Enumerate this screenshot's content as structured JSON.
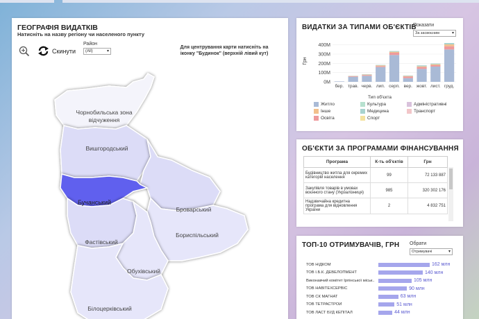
{
  "map": {
    "title": "ГЕОГРАФІЯ ВИДАТКІВ",
    "subtitle": "Натисніть на назву регіону чи населеного пункту",
    "reset_label": "Скинути",
    "rayon_label": "Район",
    "rayon_value": "(All)",
    "center_hint": "Для центрування карти натисніть на іконку \"Будинок\" (верхній лівий кут)",
    "regions": [
      {
        "label_line1": "Чорнобильська зона",
        "label_line2": "відчуження"
      },
      {
        "label_line1": "Вишгородський",
        "label_line2": ""
      },
      {
        "label_line1": "Бучанський",
        "label_line2": ""
      },
      {
        "label_line1": "Броварський",
        "label_line2": ""
      },
      {
        "label_line1": "Бориспільський",
        "label_line2": ""
      },
      {
        "label_line1": "Фастівський",
        "label_line2": ""
      },
      {
        "label_line1": "Обухівський",
        "label_line2": ""
      },
      {
        "label_line1": "Білоцерківський",
        "label_line2": ""
      }
    ],
    "colors": {
      "selected": "#6161ee",
      "default": "#dcdcf7",
      "light": "#e6e6fa",
      "outline": "#ffffff"
    }
  },
  "expenses": {
    "title": "ВИДАТКИ ЗА ТИПАМИ ОБ'ЄКТІВ",
    "show_label": "Показати",
    "show_value": "За засвоєним",
    "legend_title": "Тип об'єкта",
    "legend": [
      {
        "label": "Житло",
        "color": "#a9bad6"
      },
      {
        "label": "Культура",
        "color": "#b7e1cf"
      },
      {
        "label": "Адміністративні",
        "color": "#d9c2dc"
      },
      {
        "label": "Інше",
        "color": "#f2c08c"
      },
      {
        "label": "Медицина",
        "color": "#a8d3cf"
      },
      {
        "label": "Транспорт",
        "color": "#f2c6c9"
      },
      {
        "label": "Освіта",
        "color": "#ee9a9c"
      },
      {
        "label": "Спорт",
        "color": "#f4e2a0"
      }
    ]
  },
  "chart_data": {
    "type": "bar",
    "title": "ВИДАТКИ ЗА ТИПАМИ ОБ'ЄКТІВ",
    "xlabel": "",
    "ylabel": "Грн",
    "ylim": [
      0,
      450
    ],
    "yticks": [
      "0M",
      "100M",
      "200M",
      "300M",
      "400M"
    ],
    "categories": [
      "бер.",
      "трав.",
      "черв.",
      "лип.",
      "серп.",
      "вер.",
      "жовт.",
      "лист.",
      "груд."
    ],
    "series": [
      {
        "name": "Житло",
        "values": [
          5,
          55,
          65,
          160,
          290,
          40,
          140,
          165,
          350
        ]
      },
      {
        "name": "Освіта",
        "values": [
          0,
          5,
          8,
          10,
          25,
          18,
          20,
          15,
          35
        ]
      },
      {
        "name": "Інше",
        "values": [
          0,
          3,
          5,
          8,
          10,
          5,
          8,
          10,
          20
        ]
      },
      {
        "name": "Медицина",
        "values": [
          0,
          2,
          4,
          5,
          8,
          5,
          10,
          8,
          15
        ]
      }
    ]
  },
  "programs": {
    "title": "ОБ'ЄКТИ ЗА  ПРОГРАМАМИ ФІНАНСУВАННЯ",
    "headers": [
      "Програма",
      "К-ть об'єктів",
      "Грн"
    ],
    "rows": [
      {
        "name": "Будівництво житла для окремих категорій населення",
        "count": "99",
        "amount": "72 133 887"
      },
      {
        "name": "Закупівля товарів в умовах воєнного стану (Укрзалізниця)",
        "count": "985",
        "amount": "320 302 176"
      },
      {
        "name": "Надзвичайна кредитна програма для відновлення України",
        "count": "2",
        "amount": "4 832 751"
      }
    ]
  },
  "top10": {
    "title": "ТОП-10 ОТРИМУВАЧІВ, ГРН",
    "choose_label": "Обрати",
    "choose_value": "Отримувачі",
    "bar_color": "#a5a6ec",
    "rows": [
      {
        "name": "ТОВ НІДКОМ",
        "value": 162,
        "label": "162 млн"
      },
      {
        "name": "ТОВ І.Б.К. ДЕВЕЛОПМЕНТ",
        "value": 140,
        "label": "140 млн"
      },
      {
        "name": "Виконавчий комітет Ірпінської міськ..",
        "value": 105,
        "label": "105 млн"
      },
      {
        "name": "ТОВ НАВІТЕХСЕРВІС",
        "value": 90,
        "label": "90 млн"
      },
      {
        "name": "ТОВ СК МАГНАТ",
        "value": 63,
        "label": "63 млн"
      },
      {
        "name": "ТОВ ТЕТРАСТРОЙ",
        "value": 51,
        "label": "51 млн"
      },
      {
        "name": "ТОВ ЛАСТ БУД КЕПІТАЛ",
        "value": 44,
        "label": "44 млн"
      }
    ]
  }
}
